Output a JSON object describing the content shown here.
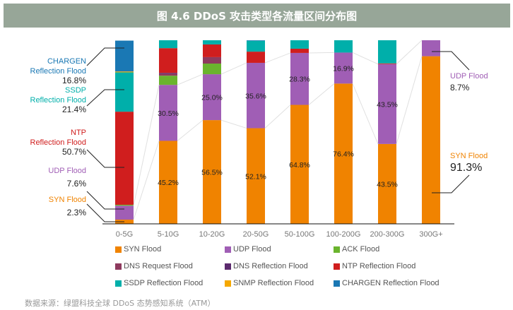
{
  "chart_data": {
    "type": "bar",
    "stacked": true,
    "percent": true,
    "title": "图 4.6 DDoS 攻击类型各流量区间分布图",
    "categories": [
      "0-5G",
      "5-10G",
      "10-20G",
      "20-50G",
      "50-100G",
      "100-200G",
      "200-300G",
      "300G+"
    ],
    "ylim": [
      0,
      100
    ],
    "grid": false,
    "legend_position": "bottom",
    "series": [
      {
        "name": "SYN Flood",
        "color": "#f08300",
        "values": [
          2.3,
          45.2,
          56.5,
          52.1,
          64.8,
          76.4,
          43.5,
          91.3
        ]
      },
      {
        "name": "UDP Flood",
        "color": "#a05eb5",
        "values": [
          7.6,
          30.5,
          25.0,
          35.6,
          28.3,
          16.9,
          43.5,
          8.7
        ]
      },
      {
        "name": "ACK Flood",
        "color": "#6ab42d",
        "values": [
          0.5,
          5.0,
          5.8,
          0,
          0,
          0,
          0,
          0
        ]
      },
      {
        "name": "DNS Request Flood",
        "color": "#8e3a5e",
        "values": [
          0,
          1.0,
          3.5,
          0,
          0,
          0,
          0,
          0
        ]
      },
      {
        "name": "DNS Reflection Flood",
        "color": "#5c2a6e",
        "values": [
          0,
          0.5,
          0,
          0,
          0,
          0,
          0,
          0
        ]
      },
      {
        "name": "NTP Reflection Flood",
        "color": "#d01e1e",
        "values": [
          50.7,
          13.5,
          6.9,
          6.1,
          2.3,
          0,
          0.4,
          0
        ]
      },
      {
        "name": "SSDP Reflection Flood",
        "color": "#00afaa",
        "values": [
          21.4,
          4.3,
          2.3,
          5.9,
          4.6,
          6.7,
          12.6,
          0
        ]
      },
      {
        "name": "SNMP Reflection Flood",
        "color": "#f5a800",
        "values": [
          0.5,
          0,
          0,
          0,
          0,
          0,
          0,
          0
        ]
      },
      {
        "name": "CHARGEN Reflection Flood",
        "color": "#1a78b4",
        "values": [
          16.8,
          0,
          0,
          0.3,
          0,
          0,
          0,
          0
        ]
      }
    ],
    "data_labels": {
      "SYN Flood": [
        "",
        "45.2%",
        "56.5%",
        "52.1%",
        "64.8%",
        "76.4%",
        "43.5%",
        ""
      ],
      "UDP Flood": [
        "",
        "30.5%",
        "25.0%",
        "35.6%",
        "28.3%",
        "16.9%",
        "43.5%",
        ""
      ]
    },
    "callouts_left": [
      {
        "line1": "CHARGEN",
        "line2": "Reflection Flood",
        "value": "16.8%",
        "color": "#1a78b4"
      },
      {
        "line1": "SSDP",
        "line2": "Reflection Flood",
        "value": "21.4%",
        "color": "#00afaa"
      },
      {
        "line1": "NTP",
        "line2": "Reflection Flood",
        "value": "50.7%",
        "color": "#d01e1e"
      },
      {
        "line1": "UDP Flood",
        "line2": "",
        "value": "7.6%",
        "color": "#a05eb5"
      },
      {
        "line1": "SYN Flood",
        "line2": "",
        "value": "2.3%",
        "color": "#f08300"
      }
    ],
    "callouts_right": [
      {
        "line1": "UDP Flood",
        "value": "8.7%",
        "color": "#a05eb5"
      },
      {
        "line1": "SYN Flood",
        "value": "91.3%",
        "color": "#f08300"
      }
    ]
  },
  "footer": "数据来源：绿盟科技全球 DDoS 态势感知系统（ATM）"
}
